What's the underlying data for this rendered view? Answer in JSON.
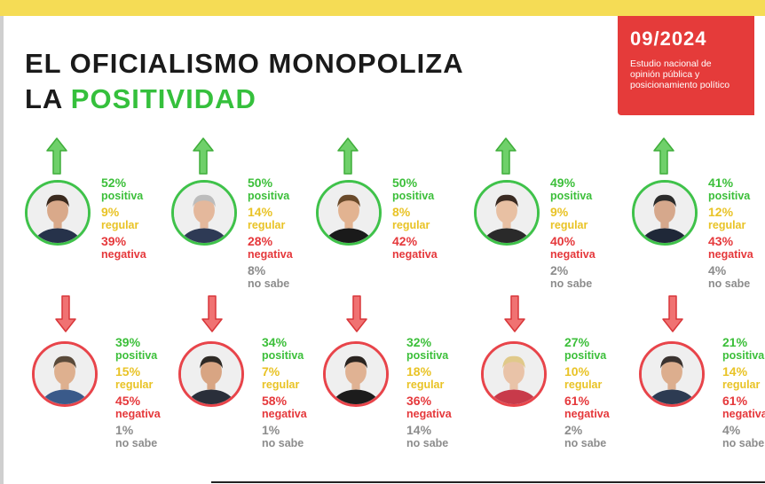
{
  "header": {
    "title_line1": "EL OFICIALISMO MONOPOLIZA",
    "title_line2_prefix": "LA ",
    "title_line2_accent": "POSITIVIDAD"
  },
  "badge": {
    "date": "09/2024",
    "description": "Estudio nacional de opinión pública y posicionamiento político"
  },
  "colors": {
    "positive": "#3cbf3a",
    "regular": "#e9c326",
    "negative": "#e5383b",
    "no_sabe": "#8c8c8c",
    "badge_bg": "#e53b3a",
    "top_bar": "#f5dc55"
  },
  "politicians": [
    {
      "trend": "up",
      "pos": "52%",
      "pos_lbl": "positiva",
      "reg": "9%",
      "reg_lbl": "regular",
      "neg": "39%",
      "neg_lbl": "negativa",
      "ns": "",
      "ns_lbl": ""
    },
    {
      "trend": "up",
      "pos": "50%",
      "pos_lbl": "positiva",
      "reg": "14%",
      "reg_lbl": "regular",
      "neg": "28%",
      "neg_lbl": "negativa",
      "ns": "8%",
      "ns_lbl": "no sabe"
    },
    {
      "trend": "up",
      "pos": "50%",
      "pos_lbl": "positiva",
      "reg": "8%",
      "reg_lbl": "regular",
      "neg": "42%",
      "neg_lbl": "negativa",
      "ns": "",
      "ns_lbl": ""
    },
    {
      "trend": "up",
      "pos": "49%",
      "pos_lbl": "positiva",
      "reg": "9%",
      "reg_lbl": "regular",
      "neg": "40%",
      "neg_lbl": "negativa",
      "ns": "2%",
      "ns_lbl": "no sabe"
    },
    {
      "trend": "up",
      "pos": "41%",
      "pos_lbl": "positiva",
      "reg": "12%",
      "reg_lbl": "regular",
      "neg": "43%",
      "neg_lbl": "negativa",
      "ns": "4%",
      "ns_lbl": "no sabe"
    },
    {
      "trend": "down",
      "pos": "39%",
      "pos_lbl": "positiva",
      "reg": "15%",
      "reg_lbl": "regular",
      "neg": "45%",
      "neg_lbl": "negativa",
      "ns": "1%",
      "ns_lbl": "no sabe"
    },
    {
      "trend": "down",
      "pos": "34%",
      "pos_lbl": "positiva",
      "reg": "7%",
      "reg_lbl": "regular",
      "neg": "58%",
      "neg_lbl": "negativa",
      "ns": "1%",
      "ns_lbl": "no sabe"
    },
    {
      "trend": "down",
      "pos": "32%",
      "pos_lbl": "positiva",
      "reg": "18%",
      "reg_lbl": "regular",
      "neg": "36%",
      "neg_lbl": "negativa",
      "ns": "14%",
      "ns_lbl": "no sabe"
    },
    {
      "trend": "down",
      "pos": "27%",
      "pos_lbl": "positiva",
      "reg": "10%",
      "reg_lbl": "regular",
      "neg": "61%",
      "neg_lbl": "negativa",
      "ns": "2%",
      "ns_lbl": "no sabe"
    },
    {
      "trend": "down",
      "pos": "21%",
      "pos_lbl": "positiva",
      "reg": "14%",
      "reg_lbl": "regular",
      "neg": "61%",
      "neg_lbl": "negativa",
      "ns": "4%",
      "ns_lbl": "no sabe"
    }
  ]
}
